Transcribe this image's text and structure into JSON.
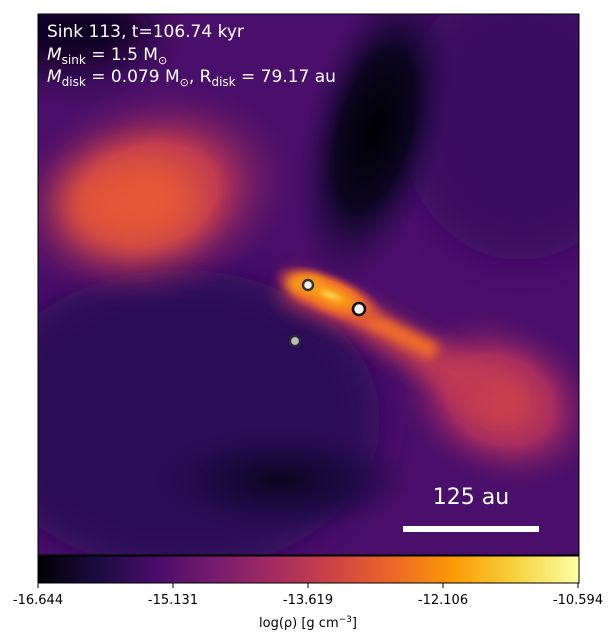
{
  "annotation": {
    "line1": "Sink 113, t=106.74 kyr",
    "line2_prefix": "M",
    "line2_sub": "sink",
    "line2_eq": " = 1.5 M",
    "line2_sun": "⊙",
    "line3_prefix": "M",
    "line3_sub": "disk",
    "line3_eq": " = 0.079 M",
    "line3_sun": "⊙",
    "line3_mid": ", R",
    "line3_sub2": "disk",
    "line3_end": " = 79.17 au"
  },
  "scale_bar": {
    "label": "125 au"
  },
  "colorbar": {
    "ticks": [
      "-16.644",
      "-15.131",
      "-13.619",
      "-12.106",
      "-10.594"
    ],
    "label_prefix": "log(ρ) [g cm",
    "label_sup": "−3",
    "label_suffix": "]"
  },
  "colors": {
    "inferno_stops": [
      "#000004",
      "#1b0c41",
      "#4a0c6b",
      "#781c6d",
      "#a52c60",
      "#cf4446",
      "#ed6925",
      "#fb9b06",
      "#f7d13d",
      "#fcffa4"
    ]
  },
  "sinks": [
    {
      "name": "sink-a",
      "fill": "#f5f5f5",
      "ring": "#3a3a3a"
    },
    {
      "name": "sink-b",
      "fill": "#ffffff",
      "ring": "#111111"
    },
    {
      "name": "sink-c",
      "fill": "#bdbdbd",
      "ring": "#2a2a2a"
    }
  ]
}
